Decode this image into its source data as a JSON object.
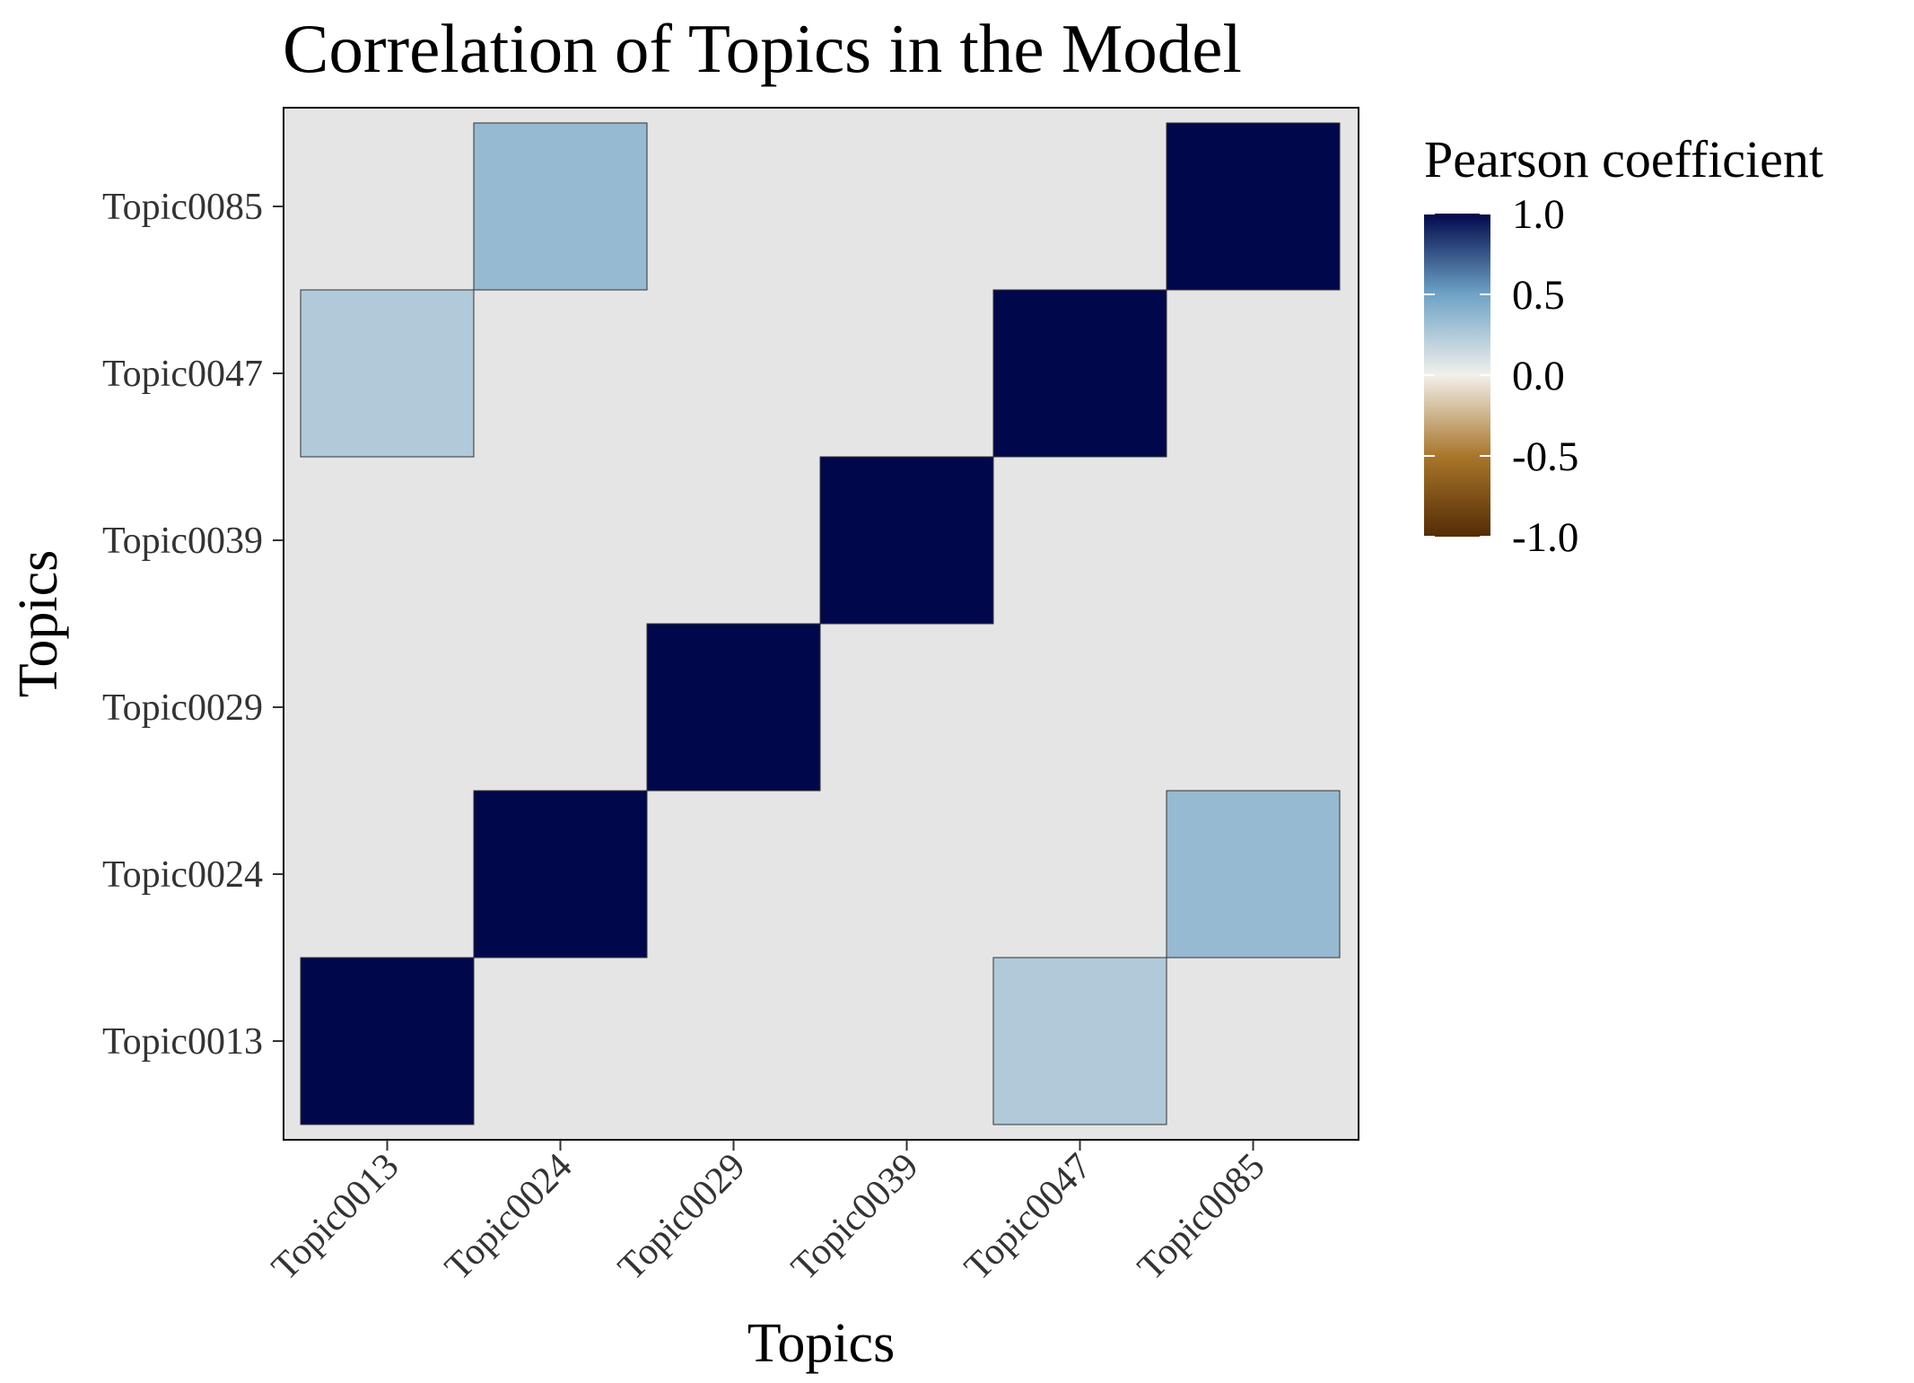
{
  "chart_data": {
    "type": "heatmap",
    "title": "Correlation of Topics in the Model",
    "xlabel": "Topics",
    "ylabel": "Topics",
    "x_categories": [
      "Topic0013",
      "Topic0024",
      "Topic0029",
      "Topic0039",
      "Topic0047",
      "Topic0085"
    ],
    "y_categories": [
      "Topic0013",
      "Topic0024",
      "Topic0029",
      "Topic0039",
      "Topic0047",
      "Topic0085"
    ],
    "cells": [
      {
        "x": "Topic0013",
        "y": "Topic0013",
        "value": 1.0
      },
      {
        "x": "Topic0024",
        "y": "Topic0024",
        "value": 1.0
      },
      {
        "x": "Topic0029",
        "y": "Topic0029",
        "value": 1.0
      },
      {
        "x": "Topic0039",
        "y": "Topic0039",
        "value": 1.0
      },
      {
        "x": "Topic0047",
        "y": "Topic0047",
        "value": 1.0
      },
      {
        "x": "Topic0085",
        "y": "Topic0085",
        "value": 1.0
      },
      {
        "x": "Topic0013",
        "y": "Topic0047",
        "value": 0.25
      },
      {
        "x": "Topic0047",
        "y": "Topic0013",
        "value": 0.25
      },
      {
        "x": "Topic0024",
        "y": "Topic0085",
        "value": 0.35
      },
      {
        "x": "Topic0085",
        "y": "Topic0024",
        "value": 0.35
      }
    ],
    "legend": {
      "title": "Pearson coefficient",
      "placement": "right",
      "ticks": [
        1.0,
        0.5,
        0.0,
        -0.5,
        -1.0
      ],
      "tick_labels": [
        "1.0",
        "0.5",
        "0.0",
        "-0.5",
        "-1.0"
      ],
      "range": [
        -1.0,
        1.0
      ]
    },
    "colors": {
      "panel_background": "#e5e5e5",
      "scale": [
        {
          "value": -1.0,
          "color": "#542c06"
        },
        {
          "value": -0.5,
          "color": "#a9762a"
        },
        {
          "value": 0.0,
          "color": "#f2f0ec"
        },
        {
          "value": 0.5,
          "color": "#6ea3c6"
        },
        {
          "value": 1.0,
          "color": "#00084b"
        }
      ]
    },
    "grid": false
  }
}
